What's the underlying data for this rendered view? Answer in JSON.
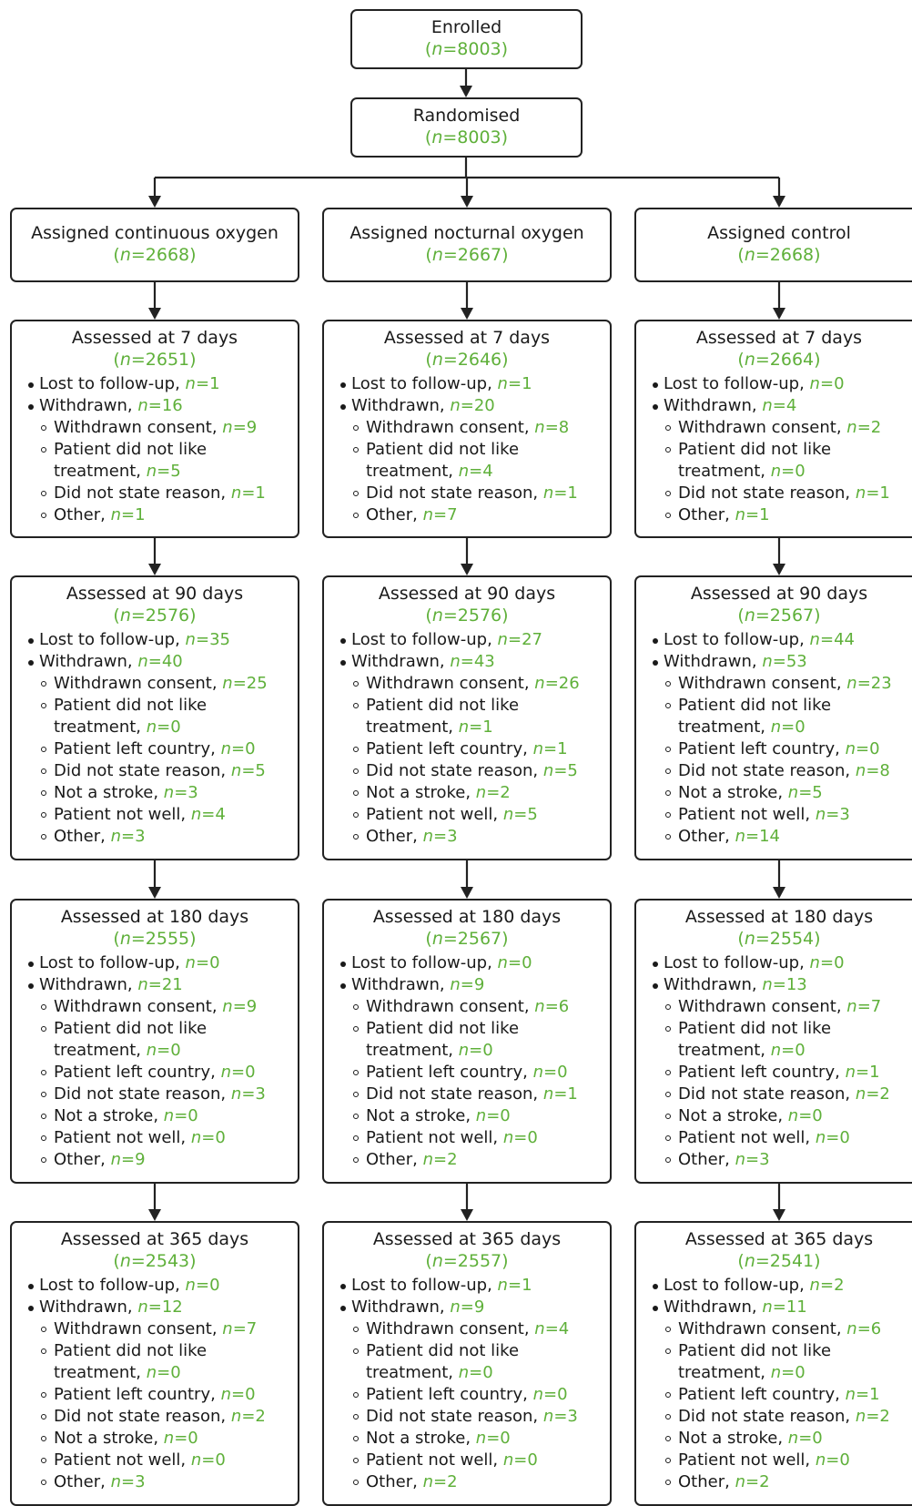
{
  "enrolled": {
    "title": "Enrolled",
    "n": "8003"
  },
  "randomised": {
    "title": "Randomised",
    "n": "8003"
  },
  "groups": [
    {
      "title": "Assigned continuous oxygen",
      "n": "2668"
    },
    {
      "title": "Assigned nocturnal oxygen",
      "n": "2667"
    },
    {
      "title": "Assigned control",
      "n": "2668"
    }
  ],
  "labels": {
    "lost": "Lost to follow-up, ",
    "withdrawn": "Withdrawn, ",
    "consent": "Withdrawn consent, ",
    "dislike1": "Patient did not like",
    "dislike2": "treatment, ",
    "country": "Patient left country, ",
    "noreason": "Did not state reason, ",
    "notstroke": "Not a stroke, ",
    "notwell": "Patient not well, ",
    "other": "Other, ",
    "n_prefix": "n",
    "eq": "="
  },
  "stages": [
    {
      "title": "Assessed at 7 days",
      "short": true,
      "cols": [
        {
          "n": "2651",
          "lost": "1",
          "withdrawn": "16",
          "consent": "9",
          "dislike": "5",
          "noreason": "1",
          "other": "1"
        },
        {
          "n": "2646",
          "lost": "1",
          "withdrawn": "20",
          "consent": "8",
          "dislike": "4",
          "noreason": "1",
          "other": "7"
        },
        {
          "n": "2664",
          "lost": "0",
          "withdrawn": "4",
          "consent": "2",
          "dislike": "0",
          "noreason": "1",
          "other": "1"
        }
      ]
    },
    {
      "title": "Assessed at 90 days",
      "short": false,
      "cols": [
        {
          "n": "2576",
          "lost": "35",
          "withdrawn": "40",
          "consent": "25",
          "dislike": "0",
          "country": "0",
          "noreason": "5",
          "notstroke": "3",
          "notwell": "4",
          "other": "3"
        },
        {
          "n": "2576",
          "lost": "27",
          "withdrawn": "43",
          "consent": "26",
          "dislike": "1",
          "country": "1",
          "noreason": "5",
          "notstroke": "2",
          "notwell": "5",
          "other": "3"
        },
        {
          "n": "2567",
          "lost": "44",
          "withdrawn": "53",
          "consent": "23",
          "dislike": "0",
          "country": "0",
          "noreason": "8",
          "notstroke": "5",
          "notwell": "3",
          "other": "14"
        }
      ]
    },
    {
      "title": "Assessed at 180 days",
      "short": false,
      "cols": [
        {
          "n": "2555",
          "lost": "0",
          "withdrawn": "21",
          "consent": "9",
          "dislike": "0",
          "country": "0",
          "noreason": "3",
          "notstroke": "0",
          "notwell": "0",
          "other": "9"
        },
        {
          "n": "2567",
          "lost": "0",
          "withdrawn": "9",
          "consent": "6",
          "dislike": "0",
          "country": "0",
          "noreason": "1",
          "notstroke": "0",
          "notwell": "0",
          "other": "2"
        },
        {
          "n": "2554",
          "lost": "0",
          "withdrawn": "13",
          "consent": "7",
          "dislike": "0",
          "country": "1",
          "noreason": "2",
          "notstroke": "0",
          "notwell": "0",
          "other": "3"
        }
      ]
    },
    {
      "title": "Assessed at 365 days",
      "short": false,
      "cols": [
        {
          "n": "2543",
          "lost": "0",
          "withdrawn": "12",
          "consent": "7",
          "dislike": "0",
          "country": "0",
          "noreason": "2",
          "notstroke": "0",
          "notwell": "0",
          "other": "3"
        },
        {
          "n": "2557",
          "lost": "1",
          "withdrawn": "9",
          "consent": "4",
          "dislike": "0",
          "country": "0",
          "noreason": "3",
          "notstroke": "0",
          "notwell": "0",
          "other": "2"
        },
        {
          "n": "2541",
          "lost": "2",
          "withdrawn": "11",
          "consent": "6",
          "dislike": "0",
          "country": "1",
          "noreason": "2",
          "notstroke": "0",
          "notwell": "0",
          "other": "2"
        }
      ]
    }
  ]
}
